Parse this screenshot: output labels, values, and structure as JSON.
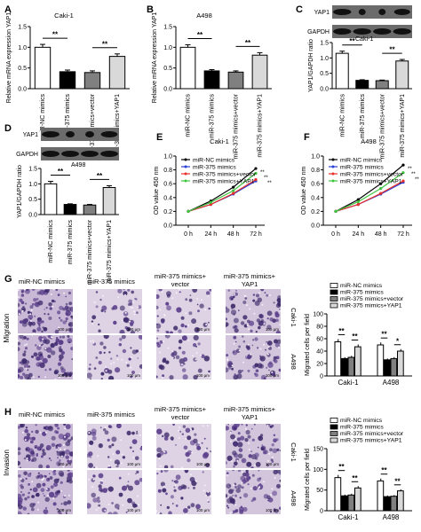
{
  "panels": {
    "A": {
      "letter": "A",
      "title": "Caki-1"
    },
    "B": {
      "letter": "B",
      "title": "A498"
    },
    "C": {
      "letter": "C",
      "title": "Caki-1",
      "blot_labels": [
        "YAP1",
        "GAPDH"
      ]
    },
    "D": {
      "letter": "D",
      "title": "A498",
      "blot_labels": [
        "YAP1",
        "GAPDH"
      ]
    },
    "E": {
      "letter": "E",
      "title": "Caki-1"
    },
    "F": {
      "letter": "F",
      "title": "A498"
    },
    "G": {
      "letter": "G",
      "row_label": "Migration"
    },
    "H": {
      "letter": "H",
      "row_label": "Invasion"
    }
  },
  "groups_short": [
    "miR-NC mimics",
    "miR-375 mimics",
    "miR-375 mimics+vector",
    "miR-375 mimics+YAP1"
  ],
  "column_headers": [
    "miR-NC mimics",
    "miR-375 mimics",
    "miR-375 mimics+ vector",
    "miR-375 mimics+ YAP1"
  ],
  "cell_lines": [
    "Caki-1",
    "A498"
  ],
  "scale_bar": "100 μm",
  "sig_mark": "**",
  "sig_mark_single": "*",
  "colors": {
    "nc": "#ffffff",
    "mimic": "#000000",
    "vector": "#808080",
    "yap1": "#d9d9d9",
    "line_red": "#e8302a",
    "line_blue": "#2a3fd6",
    "line_green": "#3fc43f",
    "stain": "#5a3d8a"
  },
  "chart_data": [
    {
      "id": "A",
      "type": "bar",
      "title": "Caki-1",
      "ylabel": "Relative mRNA expression YAP1",
      "ylim": [
        0,
        1.5
      ],
      "yticks": [
        0.0,
        0.5,
        1.0,
        1.5
      ],
      "categories": [
        "miR-NC mimics",
        "miR-375 mimics",
        "miR-375 mimics+vector",
        "miR-375 mimics+YAP1"
      ],
      "values": [
        1.0,
        0.41,
        0.39,
        0.78
      ],
      "errors": [
        0.07,
        0.04,
        0.04,
        0.06
      ],
      "sig": [
        "**",
        "**"
      ]
    },
    {
      "id": "B",
      "type": "bar",
      "title": "A498",
      "ylabel": "Relative mRNA expression YAP1",
      "ylim": [
        0,
        1.5
      ],
      "yticks": [
        0.0,
        0.5,
        1.0,
        1.5
      ],
      "categories": [
        "miR-NC mimics",
        "miR-375 mimics",
        "miR-375 mimics+vector",
        "miR-375 mimics+YAP1"
      ],
      "values": [
        1.0,
        0.43,
        0.4,
        0.81
      ],
      "errors": [
        0.06,
        0.03,
        0.03,
        0.06
      ],
      "sig": [
        "**",
        "**"
      ]
    },
    {
      "id": "C",
      "type": "bar",
      "title": "Caki-1",
      "ylabel": "YAP1/GAPDH ratio",
      "ylim": [
        0,
        1.5
      ],
      "yticks": [
        0.0,
        0.5,
        1.0,
        1.5
      ],
      "categories": [
        "miR-NC mimics",
        "miR-375 mimics",
        "miR-375 mimics+vector",
        "miR-375 mimics+YAP1"
      ],
      "values": [
        1.15,
        0.27,
        0.26,
        0.9
      ],
      "errors": [
        0.07,
        0.02,
        0.02,
        0.05
      ],
      "sig": [
        "**",
        "**"
      ]
    },
    {
      "id": "D",
      "type": "bar",
      "title": "A498",
      "ylabel": "YAP1/GAPDH ratio",
      "ylim": [
        0,
        1.5
      ],
      "yticks": [
        0.0,
        0.5,
        1.0,
        1.5
      ],
      "categories": [
        "miR-NC mimics",
        "miR-375 mimics",
        "miR-375 mimics+vector",
        "miR-375 mimics+YAP1"
      ],
      "values": [
        1.0,
        0.33,
        0.31,
        0.88
      ],
      "errors": [
        0.08,
        0.02,
        0.02,
        0.06
      ],
      "sig": [
        "**",
        "**"
      ]
    },
    {
      "id": "E",
      "type": "line",
      "title": "Caki-1",
      "ylabel": "OD value 450 nm",
      "ylim": [
        0,
        1.0
      ],
      "yticks": [
        0.0,
        0.2,
        0.4,
        0.6,
        0.8,
        1.0
      ],
      "x": [
        "0 h",
        "24 h",
        "48 h",
        "72 h"
      ],
      "series": [
        {
          "name": "miR-NC mimics",
          "values": [
            0.2,
            0.35,
            0.55,
            0.82
          ]
        },
        {
          "name": "miR-375 mimics",
          "values": [
            0.2,
            0.3,
            0.45,
            0.64
          ]
        },
        {
          "name": "miR-375 mimics+vector",
          "values": [
            0.2,
            0.3,
            0.46,
            0.66
          ]
        },
        {
          "name": "miR-375 mimics+YAP1",
          "values": [
            0.2,
            0.33,
            0.5,
            0.75
          ]
        }
      ]
    },
    {
      "id": "F",
      "type": "line",
      "title": "A498",
      "ylabel": "OD value 450 nm",
      "ylim": [
        0,
        1.0
      ],
      "yticks": [
        0.0,
        0.2,
        0.4,
        0.6,
        0.8,
        1.0
      ],
      "x": [
        "0 h",
        "24 h",
        "48 h",
        "72 h"
      ],
      "series": [
        {
          "name": "miR-NC mimics",
          "values": [
            0.2,
            0.37,
            0.6,
            0.87
          ]
        },
        {
          "name": "miR-375 mimics",
          "values": [
            0.2,
            0.3,
            0.45,
            0.62
          ]
        },
        {
          "name": "miR-375 mimics+vector",
          "values": [
            0.2,
            0.3,
            0.46,
            0.64
          ]
        },
        {
          "name": "miR-375 mimics+YAP1",
          "values": [
            0.2,
            0.34,
            0.53,
            0.76
          ]
        }
      ]
    },
    {
      "id": "G",
      "type": "bar",
      "ylabel": "Migrated cells per field",
      "ylim": [
        0,
        100
      ],
      "yticks": [
        0,
        20,
        40,
        60,
        80,
        100
      ],
      "categories": [
        "Caki-1",
        "A498"
      ],
      "series": [
        {
          "name": "miR-NC mimics",
          "values": [
            55,
            50
          ]
        },
        {
          "name": "miR-375 mimics",
          "values": [
            28,
            26
          ]
        },
        {
          "name": "miR-375 mimics+vector",
          "values": [
            30,
            28
          ]
        },
        {
          "name": "miR-375 mimics+YAP1",
          "values": [
            47,
            40
          ]
        }
      ],
      "sig": [
        [
          "**",
          "**"
        ],
        [
          "**",
          "*"
        ]
      ]
    },
    {
      "id": "H",
      "type": "bar",
      "ylabel": "Migrated cells per field",
      "ylim": [
        0,
        150
      ],
      "yticks": [
        0,
        50,
        100,
        150
      ],
      "categories": [
        "Caki-1",
        "A498"
      ],
      "series": [
        {
          "name": "miR-NC mimics",
          "values": [
            80,
            72
          ]
        },
        {
          "name": "miR-375 mimics",
          "values": [
            36,
            34
          ]
        },
        {
          "name": "miR-375 mimics+vector",
          "values": [
            38,
            35
          ]
        },
        {
          "name": "miR-375 mimics+YAP1",
          "values": [
            55,
            48
          ]
        }
      ],
      "sig": [
        [
          "**",
          "**"
        ],
        [
          "**",
          "**"
        ]
      ]
    }
  ]
}
